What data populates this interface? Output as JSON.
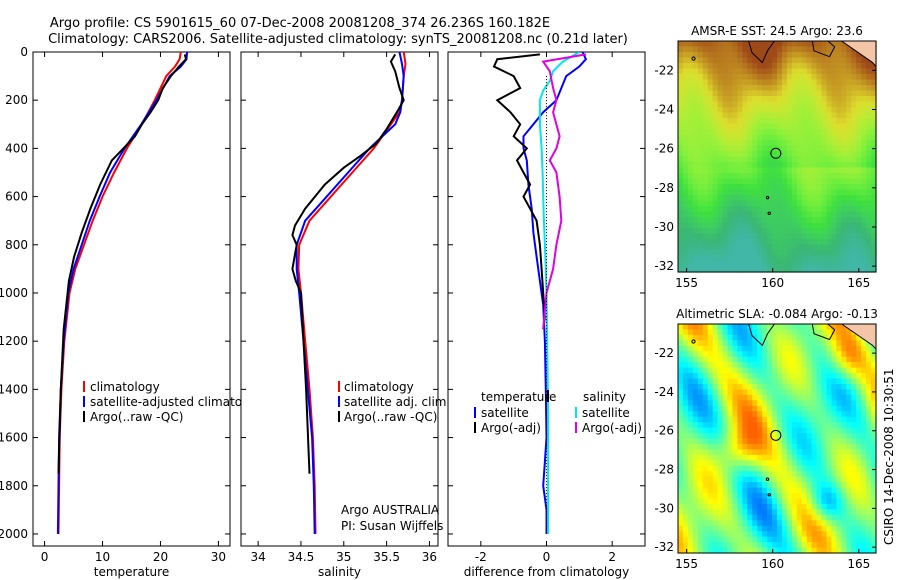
{
  "header": {
    "title_line1": "Argo profile: CS 5901615_60 07-Dec-2008 20081208_374 26.236S 160.182E",
    "title_line2": "Climatology: CARS2006. Satellite-adjusted climatology: synTS_20081208.nc (0.21d later)"
  },
  "colors": {
    "climatology": "#ff0000",
    "satellite": "#0000ff",
    "argo": "#000000",
    "satellite_salinity": "#00e5ee",
    "argo_salinity": "#e000e0"
  },
  "chart_data": [
    {
      "type": "line",
      "id": "temperature",
      "xlabel": "temperature",
      "ylabel": "",
      "xlim": [
        -2,
        32
      ],
      "ylim": [
        2050,
        0
      ],
      "xticks": [
        0,
        10,
        20,
        30
      ],
      "yticks": [
        0,
        200,
        400,
        600,
        800,
        1000,
        1200,
        1400,
        1600,
        1800,
        2000
      ],
      "legend": [
        "climatology",
        "satellite-adjusted climatology",
        "Argo(..raw -QC)"
      ],
      "series": [
        {
          "name": "climatology",
          "color": "#ff0000",
          "x": [
            23.5,
            23.3,
            22.5,
            21.0,
            19.0,
            16.8,
            14.2,
            12.0,
            10.0,
            8.3,
            6.8,
            5.3,
            4.3,
            3.4,
            2.9,
            2.6,
            2.5,
            2.4
          ],
          "y": [
            0,
            30,
            60,
            100,
            200,
            300,
            400,
            500,
            600,
            700,
            800,
            900,
            1000,
            1200,
            1400,
            1600,
            1800,
            2000
          ]
        },
        {
          "name": "satellite-adjusted climatology",
          "color": "#0000ff",
          "x": [
            24.6,
            24.5,
            23.5,
            21.6,
            19.3,
            16.7,
            13.8,
            11.3,
            9.5,
            7.8,
            6.4,
            5.0,
            4.1,
            3.3,
            2.8,
            2.5,
            2.4,
            2.3
          ],
          "y": [
            0,
            30,
            60,
            100,
            200,
            300,
            400,
            500,
            600,
            700,
            800,
            900,
            1000,
            1200,
            1400,
            1600,
            1800,
            2000
          ]
        },
        {
          "name": "Argo(..raw -QC)",
          "color": "#000000",
          "x": [
            24.2,
            24.4,
            23.2,
            21.8,
            20.4,
            19.6,
            18.3,
            16.8,
            15.6,
            13.6,
            11.6,
            9.6,
            7.9,
            6.4,
            5.1,
            4.2,
            3.3,
            2.8,
            2.5,
            2.4
          ],
          "y": [
            10,
            30,
            60,
            100,
            150,
            200,
            250,
            300,
            350,
            400,
            450,
            550,
            650,
            750,
            850,
            950,
            1150,
            1400,
            1650,
            1750
          ]
        }
      ]
    },
    {
      "type": "line",
      "id": "salinity",
      "xlabel": "salinity",
      "ylabel": "",
      "xlim": [
        33.8,
        36.1
      ],
      "ylim": [
        2050,
        0
      ],
      "xticks": [
        34,
        34.5,
        35,
        35.5,
        36
      ],
      "legend": [
        "climatology",
        "satellite adj. clim.",
        "Argo(..raw -QC)"
      ],
      "annotations": [
        "Argo AUSTRALIA",
        "PI: Susan Wijffels"
      ],
      "series": [
        {
          "name": "climatology",
          "color": "#ff0000",
          "x": [
            35.7,
            35.72,
            35.7,
            35.68,
            35.65,
            35.55,
            35.35,
            35.1,
            34.85,
            34.6,
            34.48,
            34.47,
            34.5,
            34.55,
            34.6,
            34.64,
            34.66,
            34.67
          ],
          "y": [
            0,
            50,
            100,
            200,
            250,
            300,
            400,
            500,
            600,
            700,
            800,
            900,
            1000,
            1200,
            1400,
            1600,
            1800,
            2000
          ]
        },
        {
          "name": "satellite adj. clim.",
          "color": "#0000ff",
          "x": [
            35.65,
            35.68,
            35.7,
            35.68,
            35.66,
            35.6,
            35.3,
            35.05,
            34.8,
            34.55,
            34.45,
            34.45,
            34.48,
            34.53,
            34.58,
            34.63,
            34.65,
            34.66
          ],
          "y": [
            0,
            50,
            100,
            200,
            250,
            300,
            400,
            500,
            600,
            700,
            800,
            900,
            1000,
            1200,
            1400,
            1600,
            1800,
            2000
          ]
        },
        {
          "name": "Argo(..raw -QC)",
          "color": "#000000",
          "x": [
            35.6,
            35.55,
            35.6,
            35.65,
            35.7,
            35.62,
            35.5,
            35.38,
            35.2,
            35.0,
            34.78,
            34.55,
            34.43,
            34.4,
            34.45,
            34.4,
            34.44,
            34.5,
            34.56,
            34.6
          ],
          "y": [
            10,
            40,
            80,
            150,
            200,
            250,
            320,
            380,
            430,
            480,
            550,
            650,
            720,
            760,
            800,
            900,
            950,
            1000,
            1400,
            1750
          ]
        }
      ]
    },
    {
      "type": "line",
      "id": "difference",
      "xlabel": "difference from climatology",
      "ylabel": "",
      "xlim": [
        -3,
        3
      ],
      "ylim": [
        2050,
        0
      ],
      "xticks": [
        -2,
        0,
        2
      ],
      "legend_temperature": {
        "title": "temperature",
        "items": [
          "satellite",
          "Argo(-adj)"
        ]
      },
      "legend_salinity": {
        "title": "salinity",
        "items": [
          "satellite",
          "Argo(-adj)"
        ]
      },
      "series": [
        {
          "name": "temperature satellite",
          "color": "#0000ff",
          "x": [
            1.1,
            1.2,
            1.0,
            0.6,
            0.3,
            -0.1,
            -0.4,
            -0.7,
            -0.7,
            -0.6,
            -0.55,
            -0.45,
            -0.4,
            -0.3,
            -0.2,
            -0.1,
            -0.05,
            -0.02,
            0.0,
            -0.05,
            -0.1,
            -0.05,
            0.0,
            0.0
          ],
          "y": [
            0,
            30,
            60,
            100,
            200,
            250,
            300,
            350,
            400,
            450,
            550,
            650,
            750,
            850,
            950,
            1050,
            1200,
            1400,
            1600,
            1700,
            1800,
            1850,
            1900,
            2000
          ]
        },
        {
          "name": "temperature Argo(-adj)",
          "color": "#000000",
          "x": [
            -0.2,
            -1.5,
            -1.6,
            -1.0,
            -0.8,
            -1.5,
            -1.1,
            -0.8,
            -1.0,
            -0.6,
            -0.9,
            -0.7,
            -0.5,
            -0.7,
            -0.5,
            -0.3,
            -0.2,
            -0.15,
            -0.1,
            -0.05,
            -0.1
          ],
          "y": [
            10,
            30,
            60,
            100,
            150,
            200,
            250,
            300,
            350,
            400,
            450,
            500,
            550,
            600,
            650,
            700,
            800,
            900,
            1000,
            1100,
            1150
          ]
        },
        {
          "name": "salinity satellite",
          "color": "#00e5ee",
          "x": [
            1.0,
            0.5,
            0.2,
            0.1,
            -0.1,
            -0.2,
            -0.2,
            -0.15,
            -0.12,
            -0.1,
            -0.08,
            -0.05,
            -0.02,
            0.0,
            0.02,
            0.05,
            0.05,
            0.05
          ],
          "y": [
            0,
            40,
            80,
            120,
            160,
            200,
            300,
            400,
            500,
            600,
            700,
            800,
            900,
            1000,
            1200,
            1500,
            1800,
            2000
          ]
        },
        {
          "name": "salinity Argo(-adj)",
          "color": "#e000e0",
          "x": [
            1.2,
            -0.1,
            0.1,
            0.2,
            0.3,
            0.2,
            0.4,
            0.3,
            0.1,
            0.3,
            0.4,
            0.45,
            0.3,
            0.2,
            0.0,
            -0.1
          ],
          "y": [
            10,
            40,
            80,
            150,
            200,
            250,
            350,
            400,
            450,
            500,
            600,
            700,
            800,
            900,
            1000,
            1150
          ]
        }
      ]
    },
    {
      "type": "heatmap",
      "id": "sst",
      "title": "AMSR-E SST: 24.5 Argo: 23.6",
      "xlim": [
        154.5,
        166
      ],
      "ylim": [
        -32.3,
        -20.5
      ],
      "xticks": [
        155,
        160,
        165
      ],
      "yticks": [
        -22,
        -24,
        -26,
        -28,
        -30,
        -32
      ],
      "marker": {
        "lon": 160.182,
        "lat": -26.236
      }
    },
    {
      "type": "heatmap",
      "id": "sla",
      "title": "Altimetric SLA: -0.084 Argo: -0.13",
      "xlim": [
        154.5,
        166
      ],
      "ylim": [
        -32.3,
        -20.5
      ],
      "xticks": [
        155,
        160,
        165
      ],
      "yticks": [
        -22,
        -24,
        -26,
        -28,
        -30,
        -32
      ],
      "marker": {
        "lon": 160.182,
        "lat": -26.236
      }
    }
  ],
  "footer": {
    "stamp": "CSIRO 14-Dec-2008 10:30:51"
  }
}
